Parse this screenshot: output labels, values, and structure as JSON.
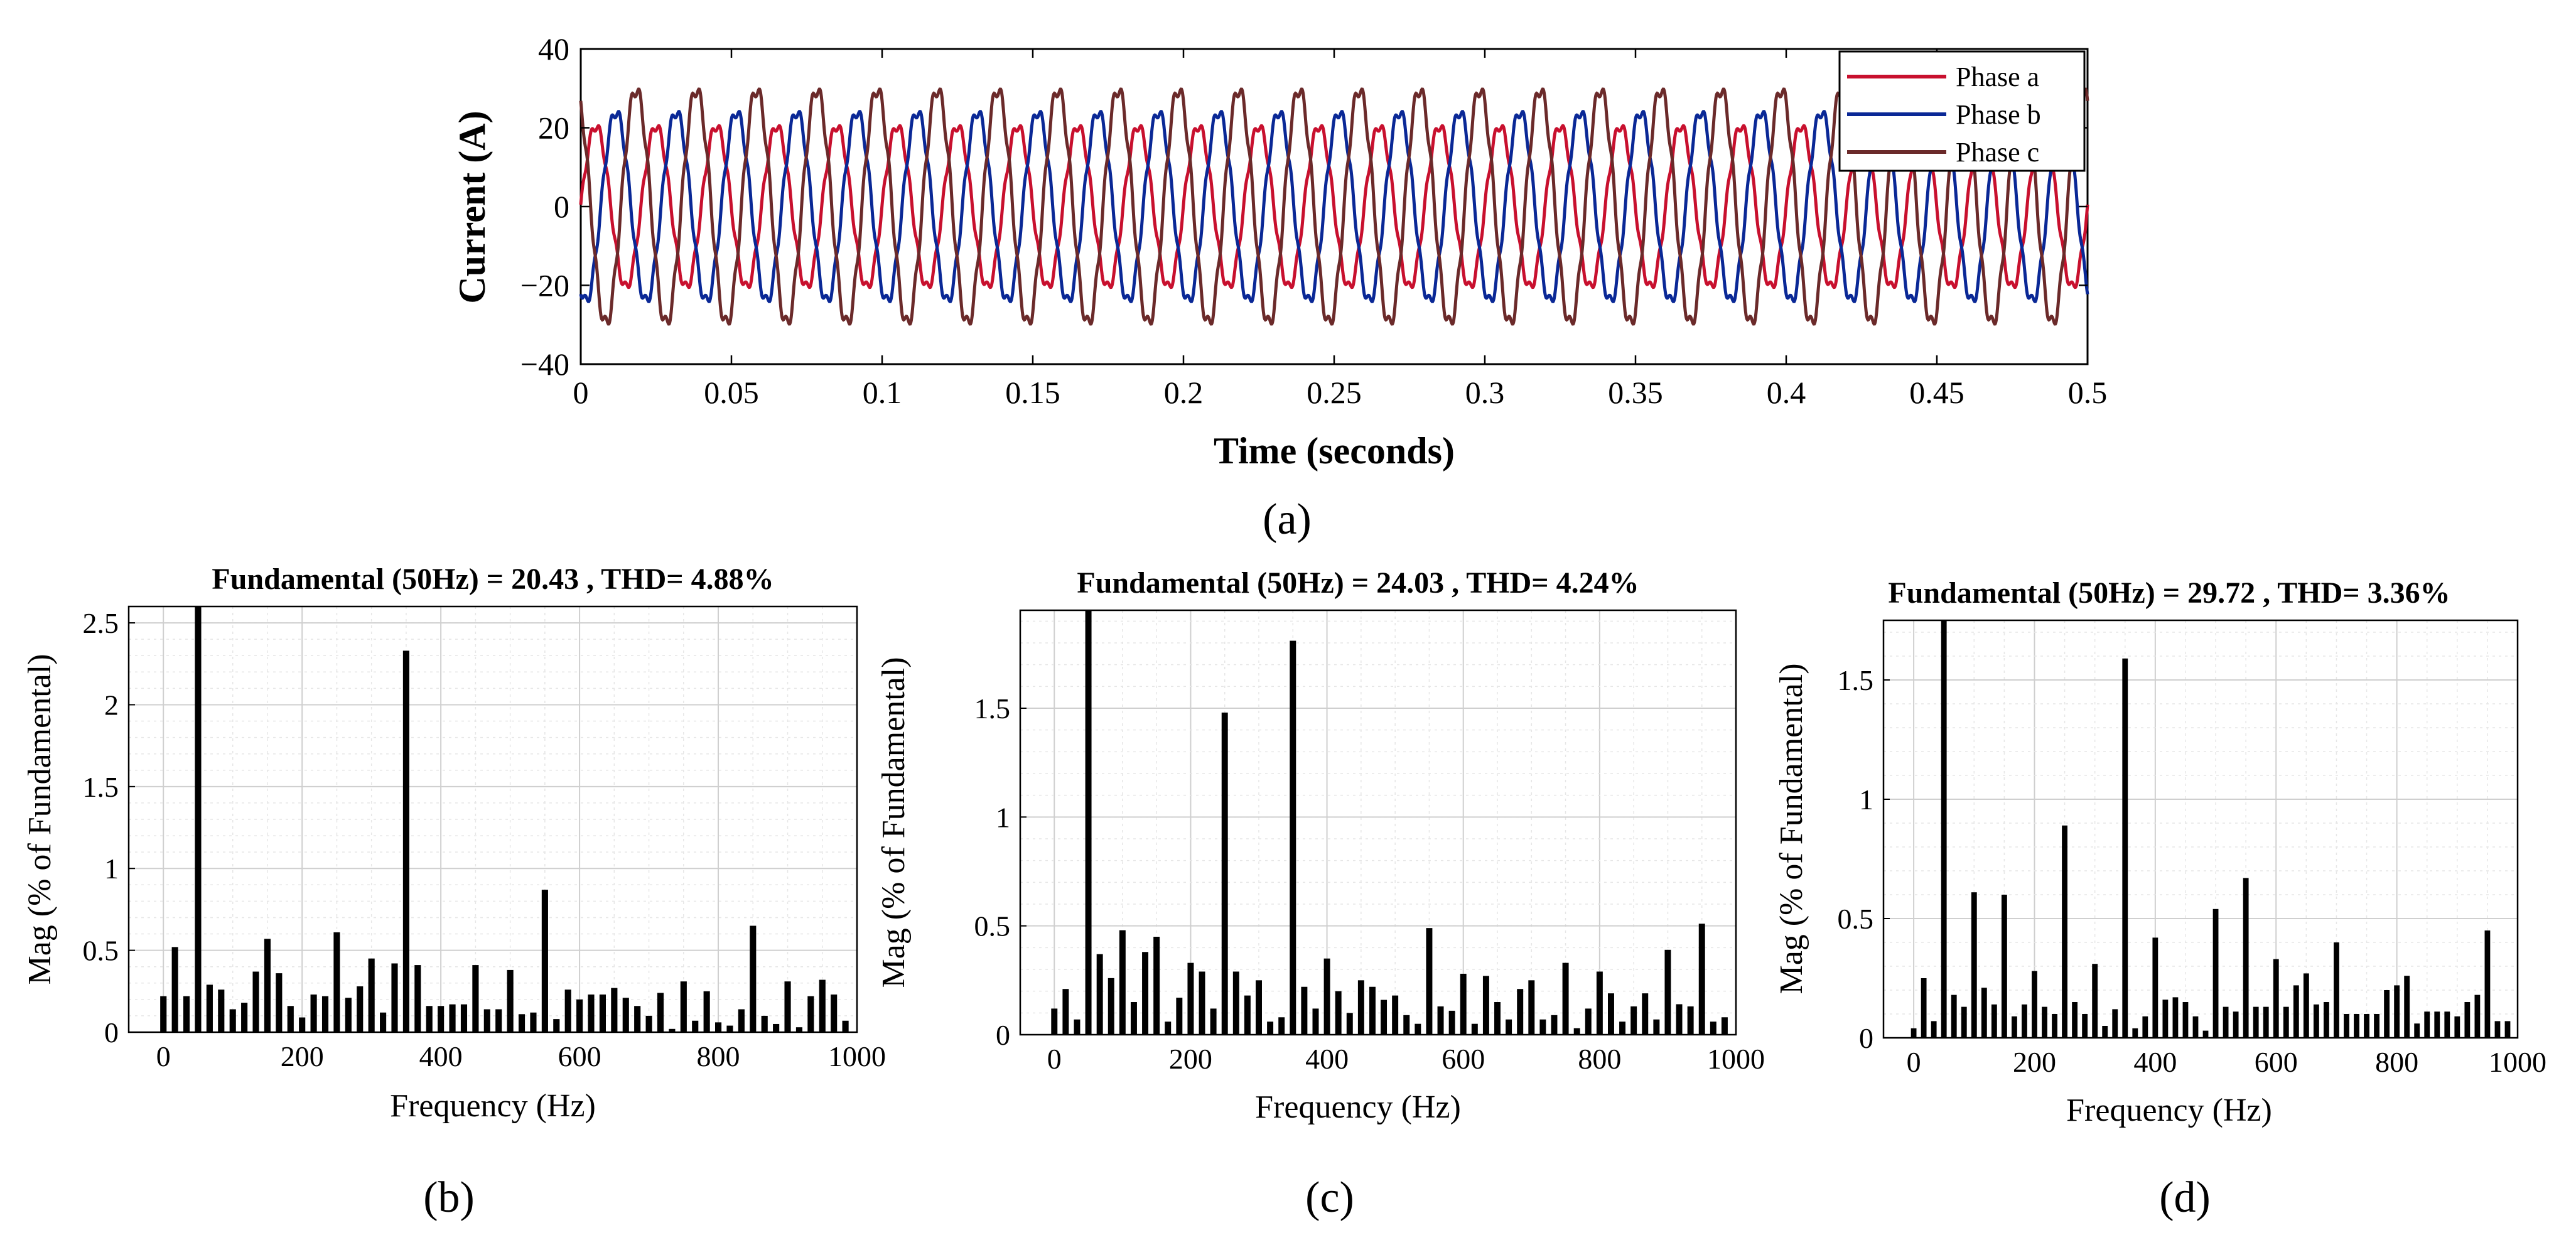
{
  "chart_data": [
    {
      "panel": "(a)",
      "type": "line",
      "xlabel": "Time (seconds)",
      "ylabel": "Current (A)",
      "xlim": [
        0,
        0.5
      ],
      "ylim": [
        -40,
        40
      ],
      "xticks": [
        0,
        0.05,
        0.1,
        0.15,
        0.2,
        0.25,
        0.3,
        0.35,
        0.4,
        0.45,
        0.5
      ],
      "xtick_labels": [
        "0",
        "0.05",
        "0.1",
        "0.15",
        "0.2",
        "0.25",
        "0.3",
        "0.35",
        "0.4",
        "0.45",
        "0.5"
      ],
      "yticks": [
        -40,
        -20,
        0,
        20,
        40
      ],
      "ytick_labels": [
        "−40",
        "−20",
        "0",
        "20",
        "40"
      ],
      "frequency_hz": 50,
      "grid": false,
      "legend_position": "top-right",
      "series": [
        {
          "name": "Phase a",
          "color": "#c8102e",
          "amplitude": 20.43,
          "phase_deg": 0
        },
        {
          "name": "Phase b",
          "color": "#0a2896",
          "amplitude": 24.03,
          "phase_deg": -120
        },
        {
          "name": "Phase c",
          "color": "#6b2a2a",
          "amplitude": 29.72,
          "phase_deg": 120
        }
      ]
    },
    {
      "panel": "(b)",
      "type": "bar",
      "title": "Fundamental (50Hz) = 20.43 , THD= 4.88%",
      "xlabel": "Frequency (Hz)",
      "ylabel": "Mag (% of Fundamental)",
      "xlim": [
        -50,
        1000
      ],
      "ylim": [
        0,
        2.6
      ],
      "xticks": [
        0,
        200,
        400,
        600,
        800,
        1000
      ],
      "xtick_labels": [
        "0",
        "200",
        "400",
        "600",
        "800",
        "1000"
      ],
      "yticks": [
        0,
        0.5,
        1,
        1.5,
        2,
        2.5
      ],
      "ytick_labels": [
        "0",
        "0.5",
        "1",
        "1.5",
        "2",
        "2.5"
      ],
      "grid": true,
      "bar_step_hz": 16.667,
      "values": [
        0.22,
        0.52,
        0.22,
        2.6,
        0.29,
        0.26,
        0.14,
        0.18,
        0.37,
        0.57,
        0.36,
        0.16,
        0.09,
        0.23,
        0.22,
        0.61,
        0.21,
        0.28,
        0.45,
        0.12,
        0.42,
        2.33,
        0.41,
        0.16,
        0.16,
        0.17,
        0.17,
        0.41,
        0.14,
        0.14,
        0.38,
        0.11,
        0.12,
        0.87,
        0.08,
        0.26,
        0.2,
        0.23,
        0.23,
        0.27,
        0.21,
        0.16,
        0.1,
        0.24,
        0.02,
        0.31,
        0.07,
        0.25,
        0.06,
        0.04,
        0.14,
        0.65,
        0.1,
        0.05,
        0.31,
        0.03,
        0.22,
        0.32,
        0.23,
        0.07
      ]
    },
    {
      "panel": "(c)",
      "type": "bar",
      "title": "Fundamental (50Hz) = 24.03 , THD= 4.24%",
      "xlabel": "Frequency (Hz)",
      "ylabel": "Mag (% of Fundamental)",
      "xlim": [
        -50,
        1000
      ],
      "ylim": [
        0,
        1.95
      ],
      "xticks": [
        0,
        200,
        400,
        600,
        800,
        1000
      ],
      "xtick_labels": [
        "0",
        "200",
        "400",
        "600",
        "800",
        "1000"
      ],
      "yticks": [
        0,
        0.5,
        1,
        1.5
      ],
      "ytick_labels": [
        "0",
        "0.5",
        "1",
        "1.5"
      ],
      "grid": true,
      "bar_step_hz": 16.667,
      "values": [
        0.12,
        0.21,
        0.07,
        1.95,
        0.37,
        0.26,
        0.48,
        0.15,
        0.38,
        0.45,
        0.06,
        0.17,
        0.33,
        0.29,
        0.12,
        1.48,
        0.29,
        0.18,
        0.25,
        0.06,
        0.08,
        1.81,
        0.22,
        0.12,
        0.35,
        0.2,
        0.1,
        0.25,
        0.22,
        0.16,
        0.18,
        0.09,
        0.05,
        0.49,
        0.13,
        0.11,
        0.28,
        0.05,
        0.27,
        0.15,
        0.07,
        0.21,
        0.25,
        0.07,
        0.09,
        0.33,
        0.03,
        0.12,
        0.29,
        0.19,
        0.06,
        0.13,
        0.19,
        0.07,
        0.39,
        0.14,
        0.13,
        0.51,
        0.06,
        0.08
      ]
    },
    {
      "panel": "(d)",
      "type": "bar",
      "title": "Fundamental (50Hz) = 29.72 , THD= 3.36%",
      "xlabel": "Frequency (Hz)",
      "ylabel": "Mag (% of Fundamental)",
      "xlim": [
        -50,
        1000
      ],
      "ylim": [
        0,
        1.75
      ],
      "xticks": [
        0,
        200,
        400,
        600,
        800,
        1000
      ],
      "xtick_labels": [
        "0",
        "200",
        "400",
        "600",
        "800",
        "1000"
      ],
      "yticks": [
        0,
        0.5,
        1,
        1.5
      ],
      "ytick_labels": [
        "0",
        "0.5",
        "1",
        "1.5"
      ],
      "grid": true,
      "bar_step_hz": 16.667,
      "values": [
        0.04,
        0.25,
        0.07,
        1.75,
        0.18,
        0.13,
        0.61,
        0.21,
        0.14,
        0.6,
        0.09,
        0.14,
        0.28,
        0.13,
        0.1,
        0.89,
        0.15,
        0.1,
        0.31,
        0.05,
        0.12,
        1.59,
        0.04,
        0.09,
        0.42,
        0.16,
        0.17,
        0.15,
        0.09,
        0.03,
        0.54,
        0.13,
        0.11,
        0.67,
        0.13,
        0.13,
        0.33,
        0.13,
        0.22,
        0.27,
        0.14,
        0.15,
        0.4,
        0.1,
        0.1,
        0.1,
        0.1,
        0.2,
        0.22,
        0.26,
        0.06,
        0.11,
        0.11,
        0.11,
        0.09,
        0.15,
        0.18,
        0.45,
        0.07,
        0.07
      ]
    }
  ],
  "panel_labels": {
    "a": "(a)",
    "b": "(b)",
    "c": "(c)",
    "d": "(d)"
  }
}
